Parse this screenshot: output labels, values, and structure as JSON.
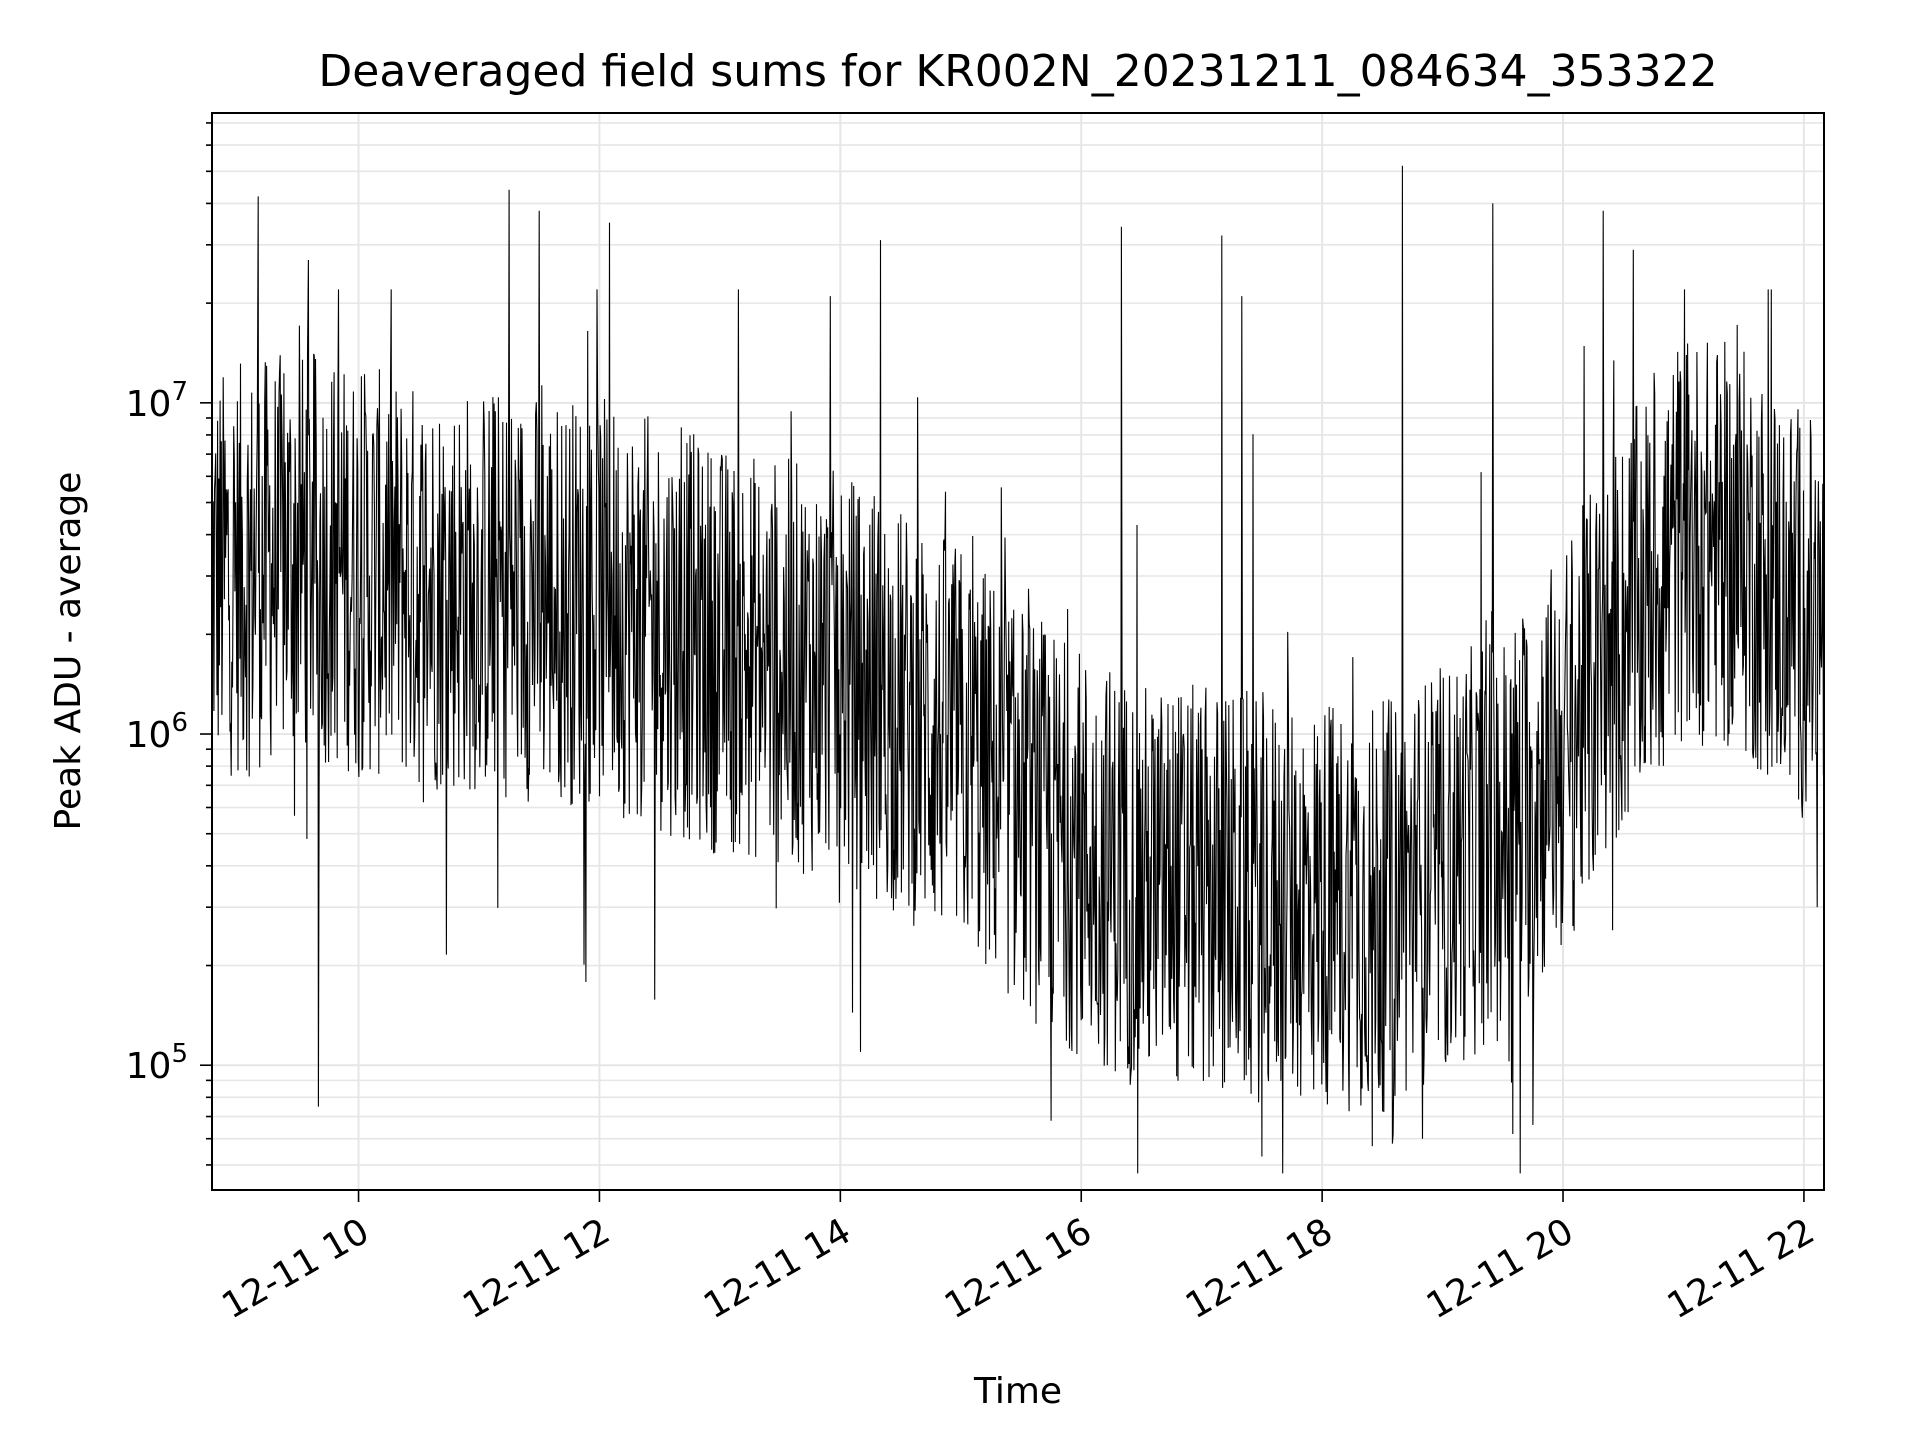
{
  "chart_data": {
    "type": "line",
    "title": "Deaveraged field sums for KR002N_20231211_084634_353322",
    "xlabel": "Time",
    "ylabel": "Peak ADU - average",
    "yscale": "log",
    "grid": true,
    "legend": "none",
    "line_color": "#000000",
    "grid_color": "#e6e6e6",
    "xlim": [
      "2023-12-11 08:47",
      "2023-12-11 22:10"
    ],
    "ylim": [
      42000,
      75000000
    ],
    "x_ticks": [
      {
        "value": "2023-12-11 10:00",
        "label": "12-11 10"
      },
      {
        "value": "2023-12-11 12:00",
        "label": "12-11 12"
      },
      {
        "value": "2023-12-11 14:00",
        "label": "12-11 14"
      },
      {
        "value": "2023-12-11 16:00",
        "label": "12-11 16"
      },
      {
        "value": "2023-12-11 18:00",
        "label": "12-11 18"
      },
      {
        "value": "2023-12-11 20:00",
        "label": "12-11 20"
      },
      {
        "value": "2023-12-11 22:00",
        "label": "12-11 22"
      }
    ],
    "y_ticks": [
      {
        "value": 100000,
        "base": "10",
        "exp": "5"
      },
      {
        "value": 1000000,
        "base": "10",
        "exp": "6"
      },
      {
        "value": 10000000,
        "base": "10",
        "exp": "7"
      }
    ],
    "series": [
      {
        "x_start": "2023-12-11 08:47",
        "x_end": "2023-12-11 22:10",
        "baseline": [
          [
            "2023-12-11 08:47",
            3000000
          ],
          [
            "2023-12-11 09:30",
            3500000
          ],
          [
            "2023-12-11 10:30",
            2800000
          ],
          [
            "2023-12-11 12:00",
            2500000
          ],
          [
            "2023-12-11 13:00",
            1800000
          ],
          [
            "2023-12-11 14:00",
            1500000
          ],
          [
            "2023-12-11 15:00",
            900000
          ],
          [
            "2023-12-11 15:45",
            500000
          ],
          [
            "2023-12-11 16:30",
            350000
          ],
          [
            "2023-12-11 17:30",
            320000
          ],
          [
            "2023-12-11 18:30",
            300000
          ],
          [
            "2023-12-11 19:30",
            500000
          ],
          [
            "2023-12-11 20:00",
            900000
          ],
          [
            "2023-12-11 20:30",
            2000000
          ],
          [
            "2023-12-11 21:00",
            4000000
          ],
          [
            "2023-12-11 21:30",
            3500000
          ],
          [
            "2023-12-11 22:10",
            2000000
          ]
        ],
        "peaks": [
          [
            "2023-12-11 09:10",
            42000000
          ],
          [
            "2023-12-11 09:35",
            27000000
          ],
          [
            "2023-12-11 09:50",
            22000000
          ],
          [
            "2023-12-11 11:15",
            44000000
          ],
          [
            "2023-12-11 11:30",
            38000000
          ],
          [
            "2023-12-11 12:05",
            35000000
          ],
          [
            "2023-12-11 13:55",
            21000000
          ],
          [
            "2023-12-11 14:20",
            31000000
          ],
          [
            "2023-12-11 16:20",
            34000000
          ],
          [
            "2023-12-11 17:10",
            32000000
          ],
          [
            "2023-12-11 17:20",
            21000000
          ],
          [
            "2023-12-11 18:40",
            52000000
          ],
          [
            "2023-12-11 19:25",
            40000000
          ],
          [
            "2023-12-11 20:20",
            38000000
          ],
          [
            "2023-12-11 20:35",
            29000000
          ]
        ],
        "troughs": [
          [
            "2023-12-11 09:40",
            75000
          ],
          [
            "2023-12-11 15:45",
            68000
          ],
          [
            "2023-12-11 17:30",
            53000
          ],
          [
            "2023-12-11 18:25",
            57000
          ],
          [
            "2023-12-11 18:35",
            58000
          ],
          [
            "2023-12-11 18:50",
            60000
          ],
          [
            "2023-12-11 19:35",
            62000
          ],
          [
            "2023-12-11 19:45",
            66000
          ]
        ]
      }
    ]
  }
}
